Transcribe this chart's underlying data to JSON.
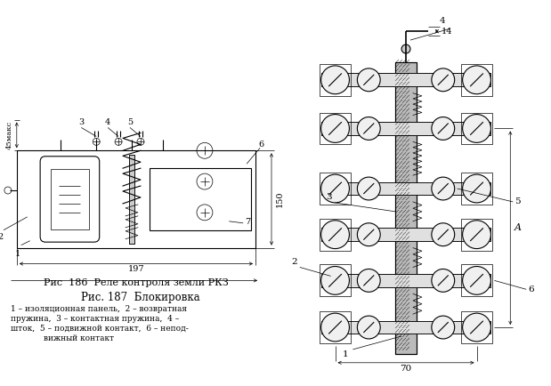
{
  "fig186_label": "Рис  186  Реле контроля земли РКЗ",
  "fig187_title": "Рис. 187  Блокировка",
  "fig187_line1": "1 – изоляционная панель,  2 – возвратная",
  "fig187_line2": "пружина,  3 – контактная пружина,  4 –",
  "fig187_line3": "шток,  5 – подвижной контакт,  6 – непод-",
  "fig187_line4": "вижный контакт",
  "bg_color": "#ffffff",
  "lc": "#000000",
  "dim_197": "197",
  "dim_150": "150",
  "dim_45max": "45макс",
  "dim_70": "70",
  "dim_14": "14",
  "dim_A": "A"
}
